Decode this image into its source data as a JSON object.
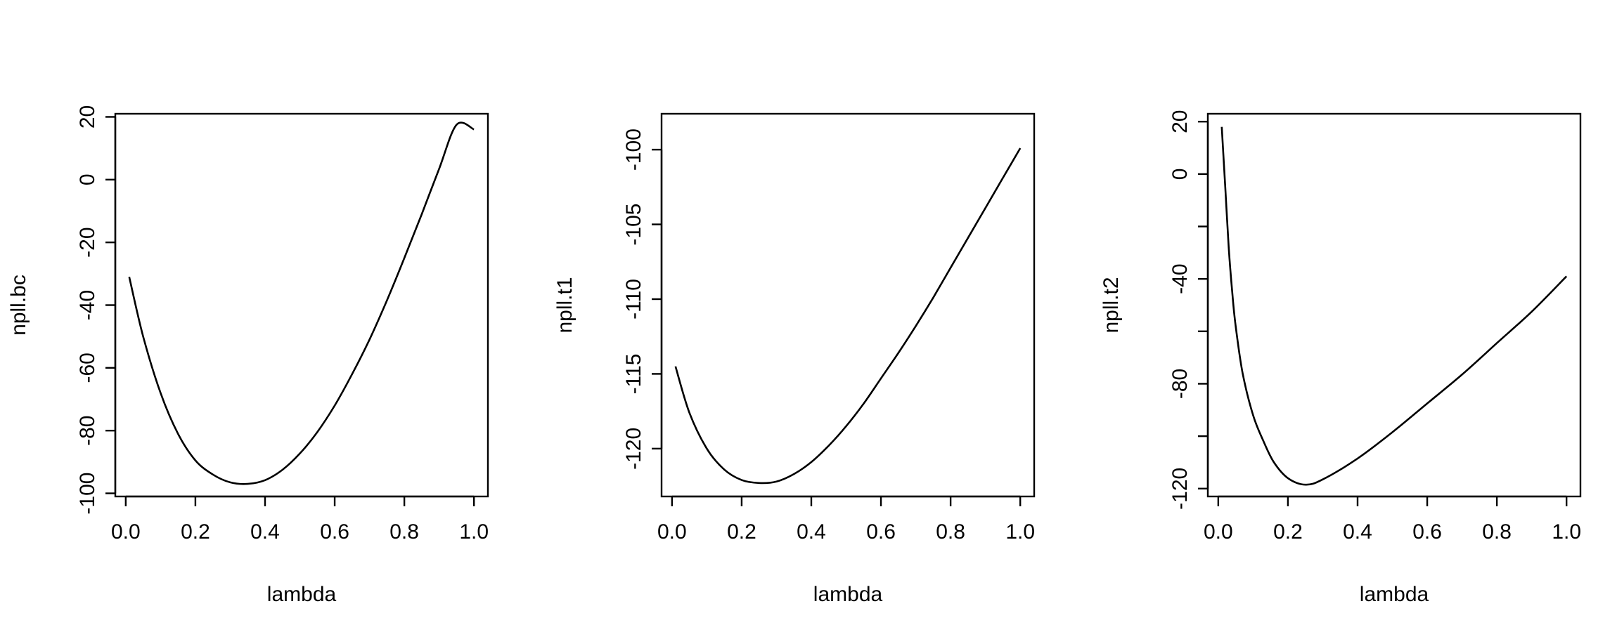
{
  "chart_data": [
    {
      "type": "line",
      "xlabel": "lambda",
      "ylabel": "npll.bc",
      "xlim": [
        -0.03,
        1.04
      ],
      "ylim": [
        -101,
        21
      ],
      "xticks": [
        0.0,
        0.2,
        0.4,
        0.6,
        0.8,
        1.0
      ],
      "xtick_labels": [
        "0.0",
        "0.2",
        "0.4",
        "0.6",
        "0.8",
        "1.0"
      ],
      "yticks": [
        -100,
        -80,
        -60,
        -40,
        -20,
        0,
        20
      ],
      "ytick_labels": [
        "-100",
        "-80",
        "-60",
        "-40",
        "-20",
        "0",
        "20"
      ],
      "x": [
        0.01,
        0.05,
        0.1,
        0.15,
        0.2,
        0.25,
        0.3,
        0.35,
        0.4,
        0.45,
        0.5,
        0.55,
        0.6,
        0.65,
        0.7,
        0.75,
        0.8,
        0.85,
        0.9,
        0.95,
        1.0
      ],
      "y": [
        -31,
        -50,
        -68,
        -81,
        -89.5,
        -94,
        -96.5,
        -97,
        -95.8,
        -92.5,
        -87.3,
        -80.5,
        -72,
        -62,
        -51,
        -38.5,
        -25,
        -11,
        3.5,
        17.5,
        16
      ]
    },
    {
      "type": "line",
      "xlabel": "lambda",
      "ylabel": "npll.t1",
      "xlim": [
        -0.03,
        1.04
      ],
      "ylim": [
        -123.2,
        -97.6
      ],
      "xticks": [
        0.0,
        0.2,
        0.4,
        0.6,
        0.8,
        1.0
      ],
      "xtick_labels": [
        "0.0",
        "0.2",
        "0.4",
        "0.6",
        "0.8",
        "1.0"
      ],
      "yticks": [
        -120,
        -115,
        -110,
        -105,
        -100
      ],
      "ytick_labels": [
        "-120",
        "-115",
        "-110",
        "-105",
        "-100"
      ],
      "x": [
        0.01,
        0.05,
        0.1,
        0.15,
        0.2,
        0.25,
        0.3,
        0.35,
        0.4,
        0.45,
        0.5,
        0.55,
        0.6,
        0.65,
        0.7,
        0.75,
        0.8,
        0.85,
        0.9,
        0.95,
        1.0
      ],
      "y": [
        -114.5,
        -117.6,
        -120.0,
        -121.4,
        -122.1,
        -122.3,
        -122.2,
        -121.7,
        -120.9,
        -119.8,
        -118.5,
        -117.0,
        -115.3,
        -113.6,
        -111.8,
        -109.9,
        -107.9,
        -105.9,
        -103.9,
        -101.9,
        -99.9
      ]
    },
    {
      "type": "line",
      "xlabel": "lambda",
      "ylabel": "npll.t2",
      "xlim": [
        -0.03,
        1.04
      ],
      "ylim": [
        -123,
        23
      ],
      "xticks": [
        0.0,
        0.2,
        0.4,
        0.6,
        0.8,
        1.0
      ],
      "xtick_labels": [
        "0.0",
        "0.2",
        "0.4",
        "0.6",
        "0.8",
        "1.0"
      ],
      "yticks": [
        -120,
        -80,
        -40,
        0,
        20
      ],
      "ytick_labels": [
        "-120",
        "-80",
        "-40",
        "0",
        "20"
      ],
      "yticks_minor": [
        -100,
        -60,
        -20
      ],
      "x": [
        0.01,
        0.02,
        0.03,
        0.04,
        0.05,
        0.07,
        0.1,
        0.13,
        0.16,
        0.2,
        0.25,
        0.3,
        0.4,
        0.5,
        0.6,
        0.7,
        0.8,
        0.9,
        1.0
      ],
      "y": [
        18,
        -5,
        -28,
        -45,
        -58,
        -76,
        -92,
        -102,
        -110,
        -116,
        -118.5,
        -116.5,
        -108.5,
        -98.5,
        -87.5,
        -76.5,
        -64.5,
        -52.5,
        -39
      ]
    }
  ]
}
